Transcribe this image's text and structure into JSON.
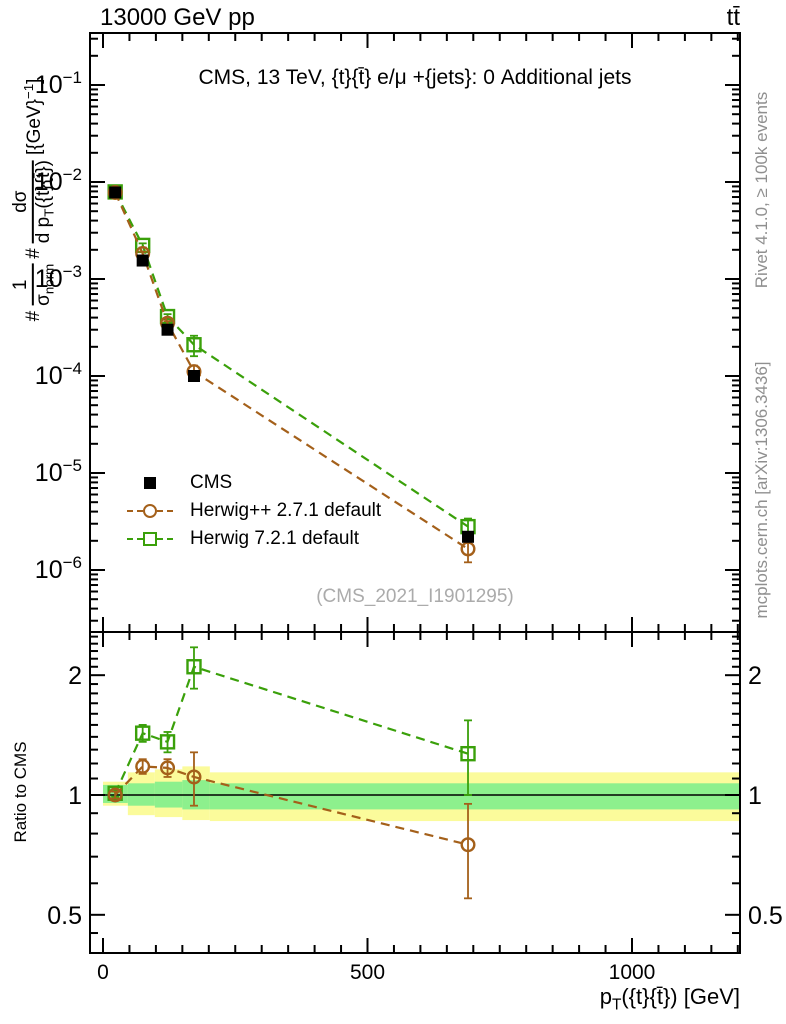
{
  "header": {
    "beam": "13000 GeV pp",
    "process": "tt̄"
  },
  "titles": {
    "main": "CMS, 13 TeV, {t}{t̄} e/μ +{jets}: 0 Additional jets",
    "watermark": "(CMS_2021_I1901295)",
    "rivet": "Rivet 4.1.0, ≥ 100k events",
    "mcplots": "mcplots.cern.ch [arXiv:1306.3436]",
    "ratio_ylabel": "Ratio to CMS"
  },
  "axis": {
    "x_title": {
      "base": "p",
      "sub": "T",
      "rest": "({t}{t̄}) [GeV]"
    },
    "y_title": {
      "hash1": "#",
      "frac1_num": "1",
      "frac1_den_base": "σ",
      "frac1_den_sub": "norm",
      "hash2": "#",
      "frac2_num": "dσ",
      "frac2_den_base": "d p",
      "frac2_den_sub": "T",
      "frac2_den_rest": "({t}{t̄})",
      "units_pre": "[{GeV}",
      "units_sup": "−1",
      "units_post": "]"
    }
  },
  "legend": {
    "items": [
      {
        "label": "CMS",
        "marker": "filled-square",
        "color": "#000000",
        "line": false
      },
      {
        "label": "Herwig++ 2.7.1 default",
        "marker": "open-circle",
        "color": "#a4601a",
        "line": true
      },
      {
        "label": "Herwig 7.2.1 default",
        "marker": "open-square",
        "color": "#3aa00a",
        "line": true
      }
    ]
  },
  "colors": {
    "cms": "#000000",
    "herwigpp": "#a4601a",
    "herwig7": "#3aa00a",
    "band_outer": "#fbfb9b",
    "band_inner": "#8df08d",
    "frame": "#000000",
    "gray_text": "#8f8f8f",
    "watermark": "#ababab"
  },
  "chart_data": [
    {
      "type": "scatter",
      "panel": "main",
      "title": "CMS, 13 TeV, {t}{t̄} e/μ +{jets}: 0 Additional jets",
      "xlabel": "p_T({t}{t̄}) [GeV]",
      "ylabel": "#1/σ_norm #dσ/dp_T({t}{t̄}) [{GeV}⁻¹]",
      "xlim": [
        -25,
        1205
      ],
      "ylog": true,
      "ylim": [
        2.3e-07,
        0.344
      ],
      "xticks_major": [
        0,
        500,
        1000
      ],
      "xtick_minor_step": 50,
      "ytick_decades": [
        -1,
        -2,
        -3,
        -4,
        -5,
        -6
      ],
      "x": [
        23,
        75,
        122,
        172,
        690
      ],
      "series": [
        {
          "name": "CMS",
          "values": [
            0.0078,
            0.00155,
            0.0003,
            0.0001,
            2.2e-06
          ],
          "errors": [
            0.0002,
            5e-05,
            9e-06,
            7e-06,
            2e-07
          ]
        },
        {
          "name": "Herwig++ 2.7.1 default",
          "values": [
            0.0078,
            0.00183,
            0.00035,
            0.000111,
            1.65e-06
          ],
          "errors": [
            0.00016,
            7.8e-05,
            1.8e-05,
            1.7e-05,
            4.5e-07
          ]
        },
        {
          "name": "Herwig 7.2.1 default",
          "values": [
            0.0079,
            0.00222,
            0.00041,
            0.00021,
            2.8e-06
          ],
          "errors": [
            0.00016,
            0.00011,
            2.4e-05,
            5e-05,
            5.9e-07
          ]
        }
      ]
    },
    {
      "type": "scatter",
      "panel": "ratio",
      "ylabel": "Ratio to CMS",
      "ylog": true,
      "ylim": [
        0.401,
        2.57
      ],
      "yticks_labeled": [
        0.5,
        1,
        2
      ],
      "reference_line": 1.0,
      "x": [
        23,
        75,
        122,
        172,
        690
      ],
      "series": [
        {
          "name": "Herwig++ 2.7.1 default",
          "values": [
            1.0,
            1.18,
            1.17,
            1.11,
            0.75
          ],
          "errors": [
            0.02,
            0.05,
            0.06,
            0.17,
            0.2
          ]
        },
        {
          "name": "Herwig 7.2.1 default",
          "values": [
            1.01,
            1.43,
            1.36,
            2.1,
            1.27
          ],
          "errors": [
            0.02,
            0.07,
            0.08,
            0.25,
            0.27
          ]
        }
      ],
      "bands": {
        "bin_edges": [
          0,
          47,
          98,
          150,
          202,
          1205
        ],
        "outer": [
          [
            0.94,
            1.08
          ],
          [
            0.89,
            1.14
          ],
          [
            0.88,
            1.16
          ],
          [
            0.865,
            1.18
          ],
          [
            0.86,
            1.14
          ]
        ],
        "inner": [
          [
            0.955,
            1.06
          ],
          [
            0.94,
            1.07
          ],
          [
            0.93,
            1.08
          ],
          [
            0.92,
            1.09
          ],
          [
            0.92,
            1.07
          ]
        ]
      }
    }
  ]
}
